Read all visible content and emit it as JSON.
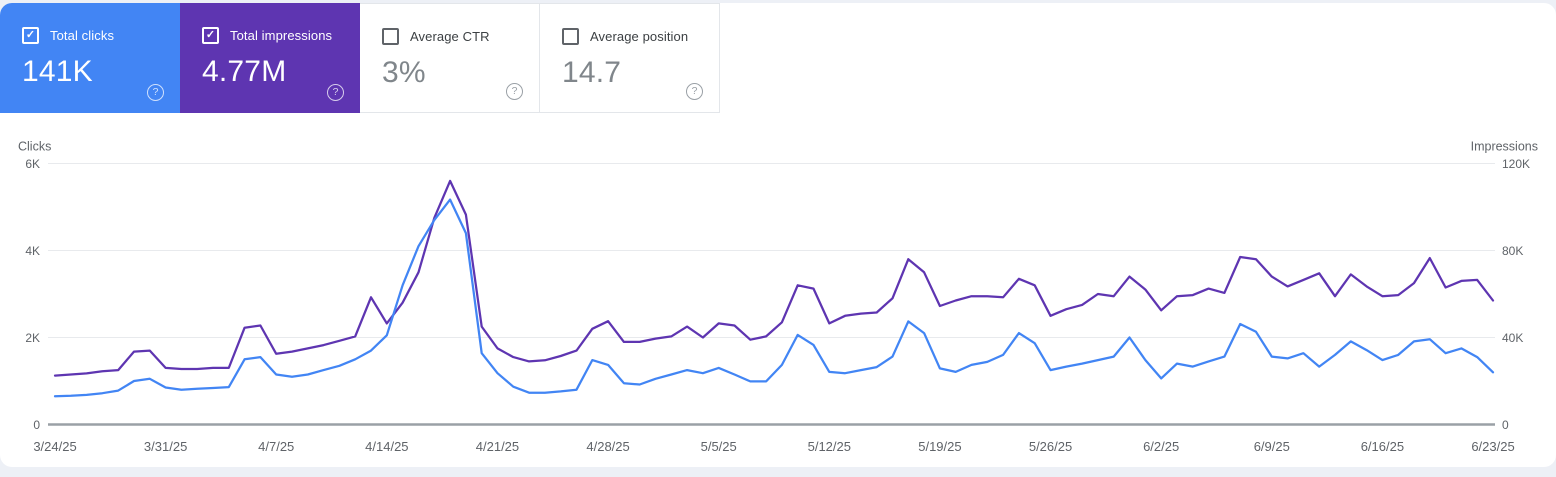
{
  "cards": [
    {
      "label": "Total clicks",
      "value": "141K",
      "checked": true,
      "color": "#4285f4"
    },
    {
      "label": "Total impressions",
      "value": "4.77M",
      "checked": true,
      "color": "#5e35b1"
    },
    {
      "label": "Average CTR",
      "value": "3%",
      "checked": false
    },
    {
      "label": "Average position",
      "value": "14.7",
      "checked": false
    }
  ],
  "icons": {
    "check": "✓",
    "help": "?"
  },
  "colors": {
    "clicks_blue": "#4285f4",
    "impressions_purple": "#5e35b1",
    "gridline": "#e8eaed",
    "zero_line": "#9aa0a6",
    "tick_text": "#5f6368"
  },
  "chart_data": {
    "type": "line",
    "left_axis_title": "Clicks",
    "right_axis_title": "Impressions",
    "left_ticks": [
      "6K",
      "4K",
      "2K",
      "0"
    ],
    "right_ticks": [
      "120K",
      "80K",
      "40K",
      "0"
    ],
    "left_axis_range": [
      0,
      6000
    ],
    "right_axis_range": [
      0,
      120000
    ],
    "grid": "horizontal",
    "legend": "none",
    "x_tick_labels": [
      "3/24/25",
      "3/31/25",
      "4/7/25",
      "4/14/25",
      "4/21/25",
      "4/28/25",
      "5/5/25",
      "5/12/25",
      "5/19/25",
      "5/26/25",
      "6/2/25",
      "6/9/25",
      "6/16/25",
      "6/23/25"
    ],
    "x_start_date": "3/24/25",
    "x_end_date": "6/23/25",
    "x_interval": "daily",
    "series": [
      {
        "name": "Clicks",
        "color": "#4285f4",
        "axis": "left",
        "unit": "thousands",
        "axis_max_k": 6,
        "values": [
          0.65,
          0.66,
          0.68,
          0.72,
          0.78,
          1.0,
          1.05,
          0.85,
          0.8,
          0.82,
          0.84,
          0.86,
          1.5,
          1.55,
          1.15,
          1.1,
          1.15,
          1.25,
          1.35,
          1.5,
          1.7,
          2.05,
          3.2,
          4.1,
          4.7,
          5.17,
          4.4,
          1.64,
          1.18,
          0.87,
          0.73,
          0.73,
          0.76,
          0.8,
          1.48,
          1.37,
          0.95,
          0.92,
          1.05,
          1.15,
          1.25,
          1.18,
          1.3,
          1.15,
          0.99,
          0.99,
          1.37,
          2.06,
          1.83,
          1.21,
          1.18,
          1.25,
          1.32,
          1.56,
          2.37,
          2.1,
          1.29,
          1.21,
          1.37,
          1.44,
          1.6,
          2.1,
          1.87,
          1.25,
          1.33,
          1.4,
          1.48,
          1.56,
          2.0,
          1.48,
          1.06,
          1.4,
          1.33,
          1.45,
          1.56,
          2.31,
          2.13,
          1.56,
          1.52,
          1.64,
          1.33,
          1.6,
          1.91,
          1.71,
          1.48,
          1.6,
          1.91,
          1.96,
          1.64,
          1.75,
          1.55,
          1.2
        ]
      },
      {
        "name": "Impressions",
        "color": "#5e35b1",
        "axis": "right",
        "unit": "thousands",
        "axis_max_k": 120,
        "values": [
          22.5,
          23,
          23.5,
          24.5,
          25,
          33.5,
          34,
          26,
          25.5,
          25.5,
          26,
          26,
          44.5,
          45.5,
          32.5,
          33.5,
          35,
          36.5,
          38.5,
          40.5,
          58.5,
          46.5,
          56,
          70,
          95,
          112,
          96.5,
          45,
          35,
          31,
          29,
          29.5,
          31.5,
          34,
          44,
          47.5,
          38,
          38,
          39.5,
          40.5,
          45,
          40,
          46.5,
          45.5,
          39,
          40.5,
          47,
          64,
          62.5,
          46.5,
          50,
          51,
          51.5,
          58,
          76,
          70,
          54.5,
          57,
          59,
          59,
          58.5,
          67,
          64,
          50,
          53,
          55,
          60,
          59,
          68,
          62,
          52.5,
          59,
          59.5,
          62.5,
          60.5,
          77,
          76,
          68,
          63.5,
          66.5,
          69.5,
          59,
          69,
          63.5,
          59,
          59.5,
          65,
          76.5,
          63,
          66,
          66.5,
          57
        ]
      }
    ]
  }
}
